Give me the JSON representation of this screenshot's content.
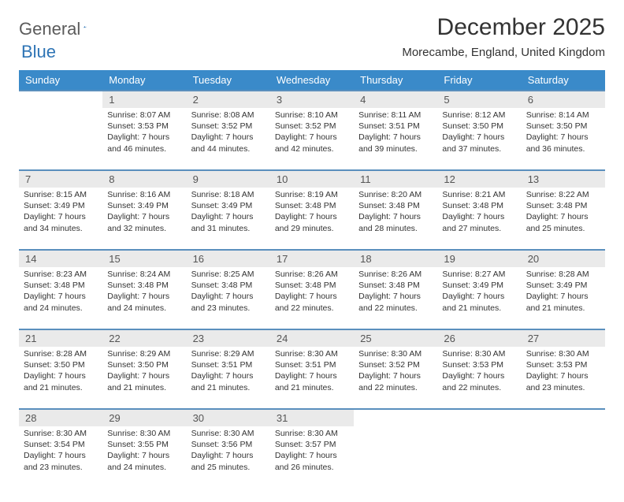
{
  "logo": {
    "text1": "General",
    "text2": "Blue",
    "color1": "#5b5b5b",
    "color2": "#2e74b5",
    "shape_color": "#2e74b5"
  },
  "title": "December 2025",
  "location": "Morecambe, England, United Kingdom",
  "header_bg": "#3a8ac9",
  "day_names": [
    "Sunday",
    "Monday",
    "Tuesday",
    "Wednesday",
    "Thursday",
    "Friday",
    "Saturday"
  ],
  "weeks": [
    {
      "nums": [
        "",
        "1",
        "2",
        "3",
        "4",
        "5",
        "6"
      ],
      "cells": [
        "",
        "Sunrise: 8:07 AM\nSunset: 3:53 PM\nDaylight: 7 hours and 46 minutes.",
        "Sunrise: 8:08 AM\nSunset: 3:52 PM\nDaylight: 7 hours and 44 minutes.",
        "Sunrise: 8:10 AM\nSunset: 3:52 PM\nDaylight: 7 hours and 42 minutes.",
        "Sunrise: 8:11 AM\nSunset: 3:51 PM\nDaylight: 7 hours and 39 minutes.",
        "Sunrise: 8:12 AM\nSunset: 3:50 PM\nDaylight: 7 hours and 37 minutes.",
        "Sunrise: 8:14 AM\nSunset: 3:50 PM\nDaylight: 7 hours and 36 minutes."
      ]
    },
    {
      "nums": [
        "7",
        "8",
        "9",
        "10",
        "11",
        "12",
        "13"
      ],
      "cells": [
        "Sunrise: 8:15 AM\nSunset: 3:49 PM\nDaylight: 7 hours and 34 minutes.",
        "Sunrise: 8:16 AM\nSunset: 3:49 PM\nDaylight: 7 hours and 32 minutes.",
        "Sunrise: 8:18 AM\nSunset: 3:49 PM\nDaylight: 7 hours and 31 minutes.",
        "Sunrise: 8:19 AM\nSunset: 3:48 PM\nDaylight: 7 hours and 29 minutes.",
        "Sunrise: 8:20 AM\nSunset: 3:48 PM\nDaylight: 7 hours and 28 minutes.",
        "Sunrise: 8:21 AM\nSunset: 3:48 PM\nDaylight: 7 hours and 27 minutes.",
        "Sunrise: 8:22 AM\nSunset: 3:48 PM\nDaylight: 7 hours and 25 minutes."
      ]
    },
    {
      "nums": [
        "14",
        "15",
        "16",
        "17",
        "18",
        "19",
        "20"
      ],
      "cells": [
        "Sunrise: 8:23 AM\nSunset: 3:48 PM\nDaylight: 7 hours and 24 minutes.",
        "Sunrise: 8:24 AM\nSunset: 3:48 PM\nDaylight: 7 hours and 24 minutes.",
        "Sunrise: 8:25 AM\nSunset: 3:48 PM\nDaylight: 7 hours and 23 minutes.",
        "Sunrise: 8:26 AM\nSunset: 3:48 PM\nDaylight: 7 hours and 22 minutes.",
        "Sunrise: 8:26 AM\nSunset: 3:48 PM\nDaylight: 7 hours and 22 minutes.",
        "Sunrise: 8:27 AM\nSunset: 3:49 PM\nDaylight: 7 hours and 21 minutes.",
        "Sunrise: 8:28 AM\nSunset: 3:49 PM\nDaylight: 7 hours and 21 minutes."
      ]
    },
    {
      "nums": [
        "21",
        "22",
        "23",
        "24",
        "25",
        "26",
        "27"
      ],
      "cells": [
        "Sunrise: 8:28 AM\nSunset: 3:50 PM\nDaylight: 7 hours and 21 minutes.",
        "Sunrise: 8:29 AM\nSunset: 3:50 PM\nDaylight: 7 hours and 21 minutes.",
        "Sunrise: 8:29 AM\nSunset: 3:51 PM\nDaylight: 7 hours and 21 minutes.",
        "Sunrise: 8:30 AM\nSunset: 3:51 PM\nDaylight: 7 hours and 21 minutes.",
        "Sunrise: 8:30 AM\nSunset: 3:52 PM\nDaylight: 7 hours and 22 minutes.",
        "Sunrise: 8:30 AM\nSunset: 3:53 PM\nDaylight: 7 hours and 22 minutes.",
        "Sunrise: 8:30 AM\nSunset: 3:53 PM\nDaylight: 7 hours and 23 minutes."
      ]
    },
    {
      "nums": [
        "28",
        "29",
        "30",
        "31",
        "",
        "",
        ""
      ],
      "cells": [
        "Sunrise: 8:30 AM\nSunset: 3:54 PM\nDaylight: 7 hours and 23 minutes.",
        "Sunrise: 8:30 AM\nSunset: 3:55 PM\nDaylight: 7 hours and 24 minutes.",
        "Sunrise: 8:30 AM\nSunset: 3:56 PM\nDaylight: 7 hours and 25 minutes.",
        "Sunrise: 8:30 AM\nSunset: 3:57 PM\nDaylight: 7 hours and 26 minutes.",
        "",
        "",
        ""
      ]
    }
  ]
}
